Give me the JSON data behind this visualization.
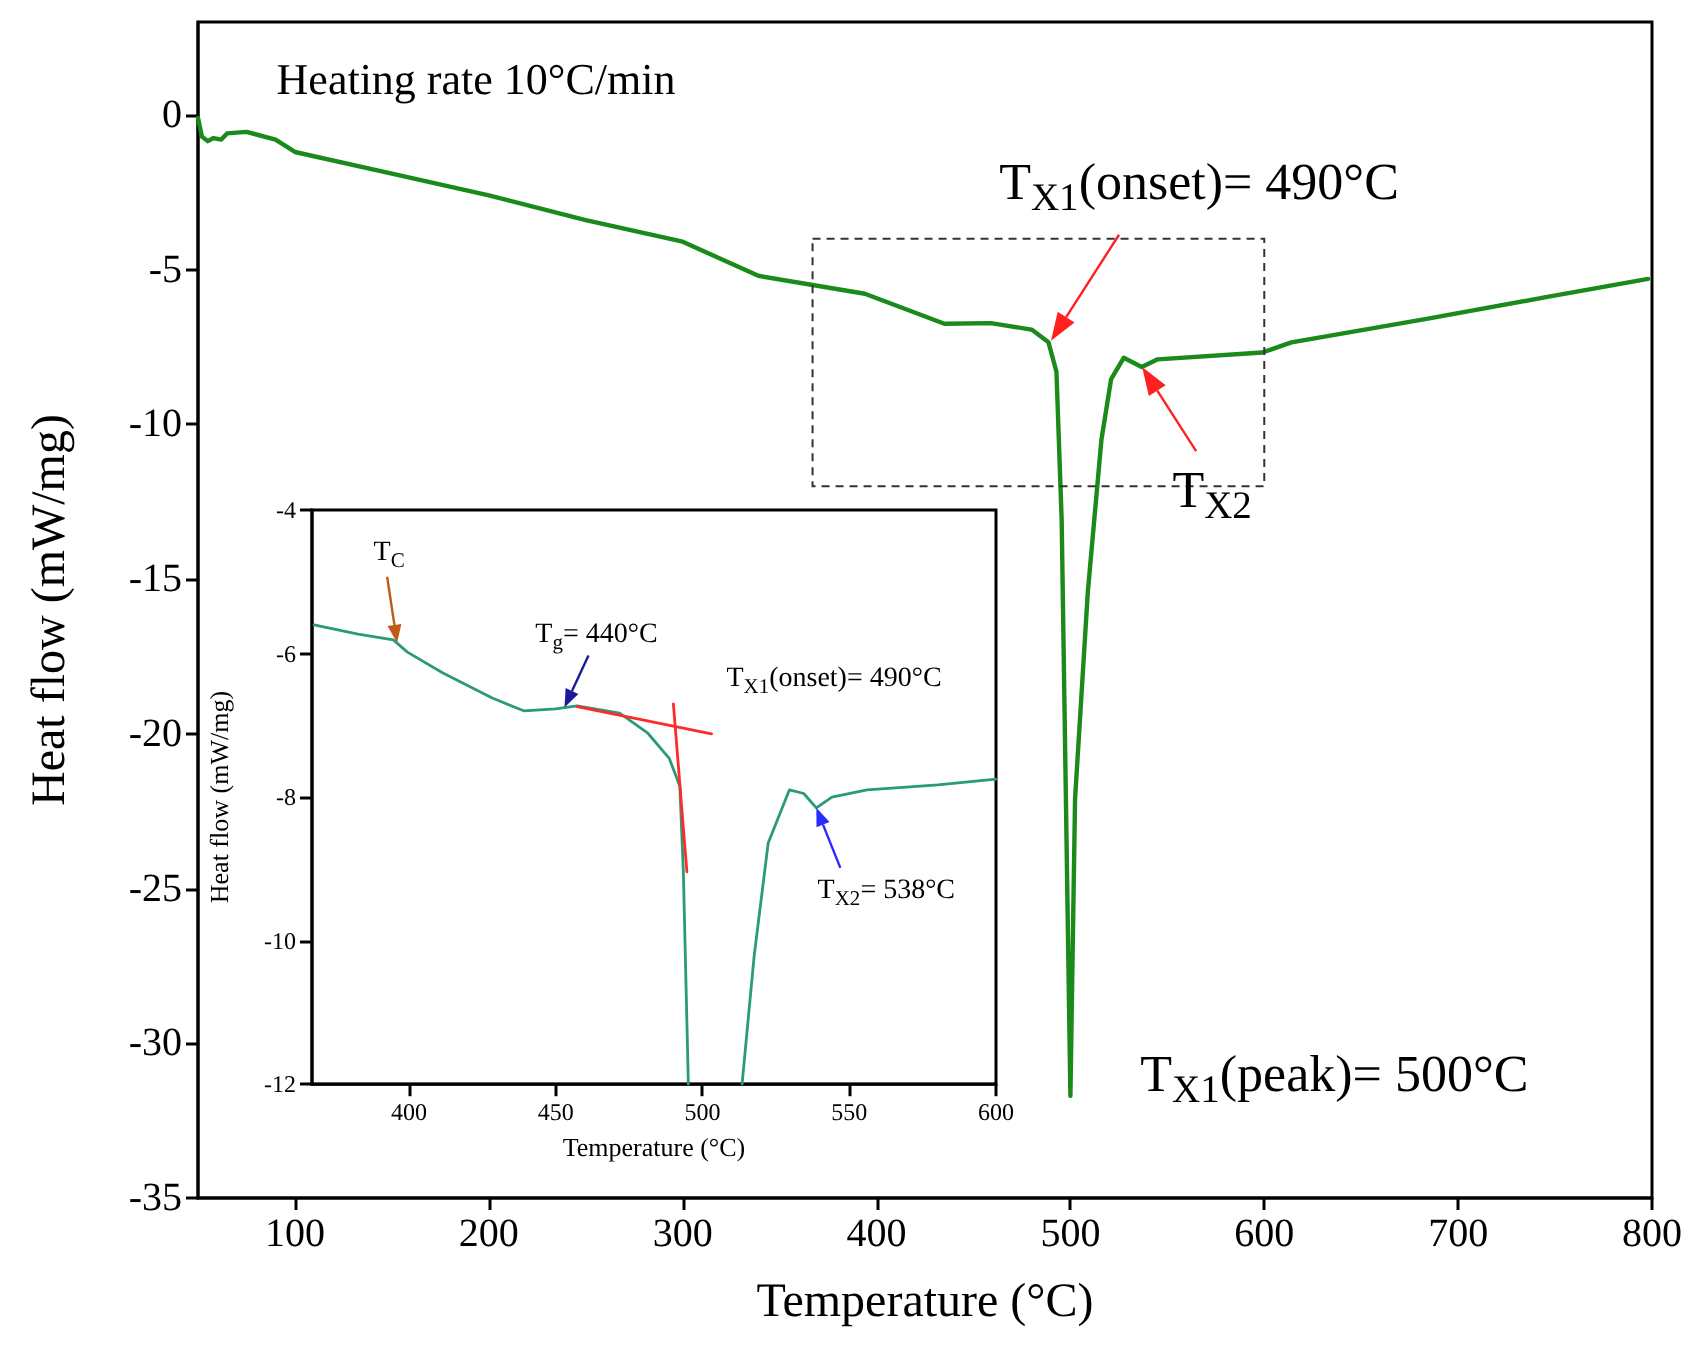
{
  "chart_data": [
    {
      "type": "line",
      "xlabel": "Temperature (°C)",
      "ylabel": "Heat flow (mW/mg)",
      "xlim": [
        50,
        800
      ],
      "ylim": [
        -35,
        3
      ],
      "xticks": [
        100,
        200,
        300,
        400,
        500,
        600,
        700,
        800
      ],
      "yticks": [
        -35,
        -30,
        -25,
        -20,
        -15,
        -10,
        -5,
        0
      ],
      "grid": false,
      "series": [
        {
          "color": "#1a8a1a",
          "x": [
            50,
            52,
            55,
            58,
            62,
            65,
            75,
            90,
            100,
            150,
            200,
            250,
            300,
            339,
            394,
            435,
            459,
            480,
            488.7,
            492.8,
            495.5,
            500,
            502.4,
            509,
            516,
            521,
            527.5,
            536.8,
            545,
            599,
            614,
            683,
            744.6,
            798
          ],
          "values": [
            -0.1,
            -0.7,
            -0.85,
            -0.75,
            -0.8,
            -0.6,
            -0.55,
            -0.8,
            -1.2,
            -1.9,
            -2.6,
            -3.4,
            -4.1,
            -5.2,
            -5.78,
            -6.75,
            -6.73,
            -6.94,
            -7.35,
            -8.3,
            -13.1,
            -31.7,
            -22.1,
            -15.4,
            -10.5,
            -8.54,
            -7.85,
            -8.15,
            -7.9,
            -7.68,
            -7.35,
            -6.6,
            -5.9,
            -5.3
          ]
        }
      ],
      "annotations": [
        "Heating rate 10°C/min",
        {
          "text": "T$_{X1}$(onset)= 490°C",
          "x": 490,
          "y": -7.3
        },
        {
          "text": "T$_{X2}$",
          "x": 537,
          "y": -8.15
        },
        {
          "text": "T$_{X1}$(peak)= 500°C",
          "x": 500,
          "y": -31.7
        }
      ]
    },
    {
      "type": "line",
      "xlabel": "Temperature (°C)",
      "ylabel": "Heat flow (mW/mg)",
      "xlim": [
        367,
        600
      ],
      "ylim": [
        -12,
        -4
      ],
      "xticks": [
        400,
        450,
        500,
        550,
        600
      ],
      "yticks": [
        -12,
        -10,
        -8,
        -6,
        -4
      ],
      "grid": false,
      "series": [
        {
          "color": "#2a9a78",
          "x": [
            367.7,
            382.7,
            394.7,
            399.5,
            411.6,
            428.4,
            439.3,
            450,
            457.3,
            471.8,
            481.4,
            488.7,
            492.3,
            493.5,
            495.2,
            null,
            513.5,
            517.6,
            522.4,
            529.6,
            534.5,
            538.8,
            544.1,
            556.1,
            580.2,
            600
          ],
          "values": [
            -5.6,
            -5.73,
            -5.81,
            -5.98,
            -6.27,
            -6.62,
            -6.8,
            -6.77,
            -6.73,
            -6.83,
            -7.11,
            -7.46,
            -7.85,
            -9.04,
            -12,
            null,
            -12,
            -10.22,
            -8.64,
            -7.9,
            -7.95,
            -8.15,
            -8.0,
            -7.9,
            -7.83,
            -7.75
          ]
        },
        {
          "color": "#ff2a2a",
          "x": [
            457.3,
            503.1
          ],
          "values": [
            -6.74,
            -7.12
          ]
        },
        {
          "color": "#ff2a2a",
          "x": [
            490.1,
            494.7
          ],
          "values": [
            -6.7,
            -9.04
          ]
        }
      ],
      "annotations": [
        {
          "text": "T$_{C}$",
          "x": 396,
          "y": -5.85
        },
        {
          "text": "T$_{g}$= 440°C",
          "x": 453,
          "y": -6.75
        },
        {
          "text": "T$_{X1}$(onset)= 490°C",
          "x": 491,
          "y": -6.95
        },
        {
          "text": "T$_{X2}$= 538°C",
          "x": 538.8,
          "y": -8.15
        }
      ]
    }
  ]
}
